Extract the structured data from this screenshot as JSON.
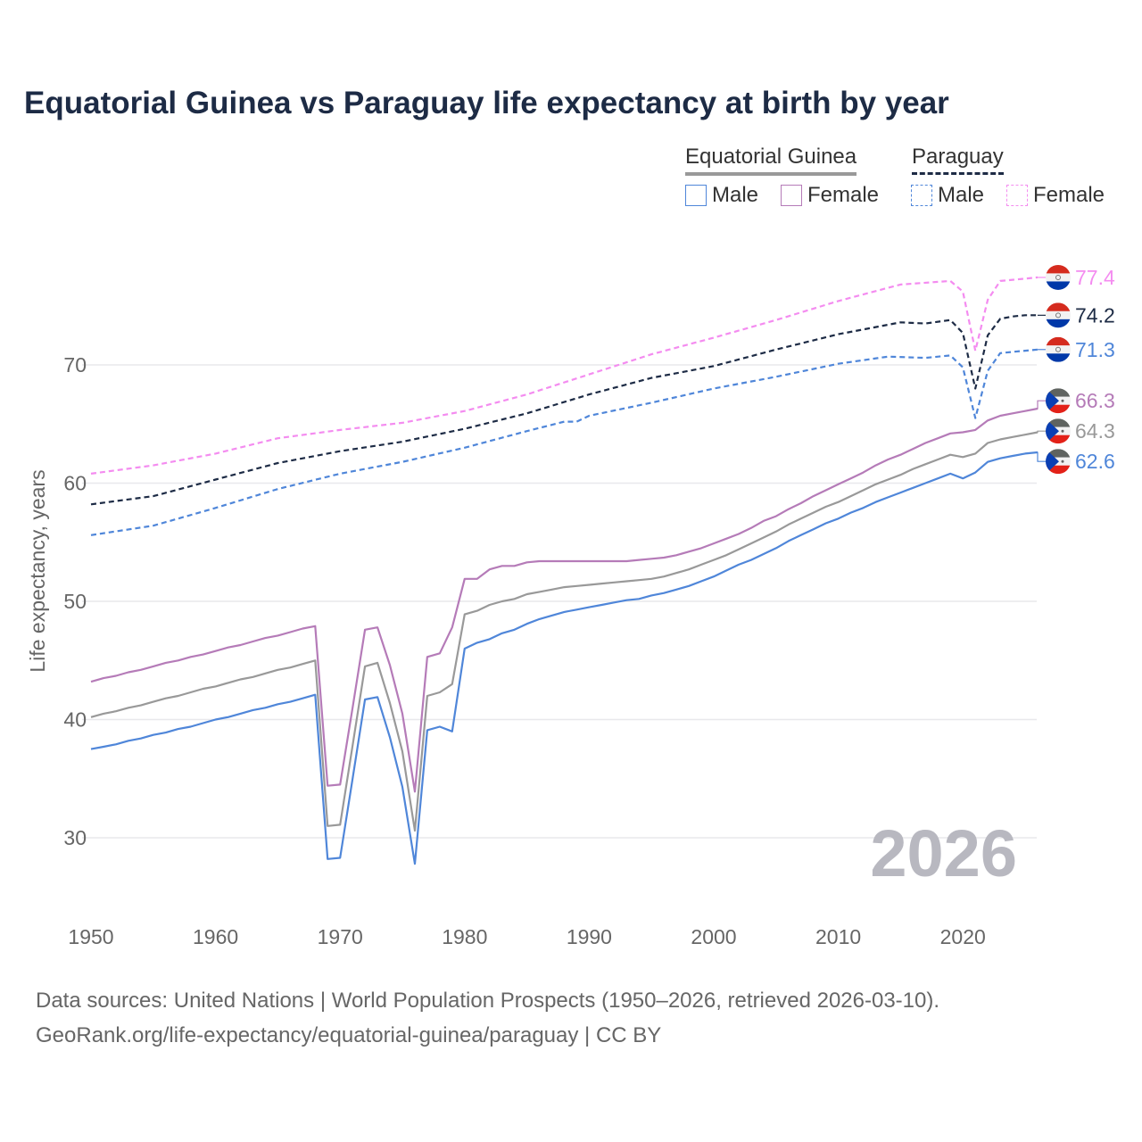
{
  "title": "Equatorial Guinea vs Paraguay life expectancy at birth by year",
  "legend": {
    "groups": [
      {
        "label": "Equatorial Guinea",
        "color": "#999999",
        "style": "solid"
      },
      {
        "label": "Paraguay",
        "color": "#1d2b45",
        "style": "dashed"
      }
    ],
    "items": [
      {
        "label": "Male",
        "color": "#4f86d9",
        "style": "solid"
      },
      {
        "label": "Female",
        "color": "#b57bb8",
        "style": "solid"
      },
      {
        "label": "Male",
        "color": "#4f86d9",
        "style": "dashed"
      },
      {
        "label": "Female",
        "color": "#f48cf0",
        "style": "dashed"
      }
    ]
  },
  "year_watermark": "2026",
  "footer": {
    "line1": "Data sources: United Nations | World Population Prospects (1950–2026, retrieved 2026-03-10).",
    "line2": "GeoRank.org/life-expectancy/equatorial-guinea/paraguay | CC BY"
  },
  "chart_data": {
    "type": "line",
    "title": "Equatorial Guinea vs Paraguay life expectancy at birth by year",
    "xlabel": "",
    "ylabel": "Life expectancy, years",
    "xlim": [
      1950,
      2026
    ],
    "ylim": [
      25,
      80
    ],
    "xticks": [
      "1950",
      "1960",
      "1970",
      "1980",
      "1990",
      "2000",
      "2010",
      "2020"
    ],
    "yticks": [
      "30",
      "40",
      "50",
      "60",
      "70"
    ],
    "grid": true,
    "series": [
      {
        "name": "Paraguay Female",
        "country": "Paraguay",
        "color": "#f48cf0",
        "dashed": true,
        "end_label": "77.4",
        "x": [
          1950,
          1955,
          1960,
          1965,
          1970,
          1975,
          1980,
          1985,
          1990,
          1995,
          2000,
          2005,
          2010,
          2015,
          2019,
          2020,
          2021,
          2022,
          2023,
          2024,
          2025,
          2026
        ],
        "y": [
          60.8,
          61.5,
          62.5,
          63.8,
          64.5,
          65.1,
          66.1,
          67.5,
          69.2,
          70.9,
          72.3,
          73.8,
          75.4,
          76.8,
          77.1,
          76.2,
          71.2,
          75.5,
          77.1,
          77.2,
          77.3,
          77.4
        ]
      },
      {
        "name": "Paraguay",
        "country": "Paraguay",
        "color": "#1d2b45",
        "dashed": true,
        "end_label": "74.2",
        "x": [
          1950,
          1955,
          1960,
          1965,
          1970,
          1975,
          1980,
          1985,
          1990,
          1995,
          2000,
          2005,
          2010,
          2015,
          2017,
          2019,
          2020,
          2021,
          2022,
          2023,
          2024,
          2025,
          2026
        ],
        "y": [
          58.2,
          58.9,
          60.3,
          61.7,
          62.7,
          63.5,
          64.6,
          65.9,
          67.5,
          68.9,
          69.9,
          71.3,
          72.6,
          73.6,
          73.5,
          73.8,
          72.7,
          68.0,
          72.5,
          73.9,
          74.1,
          74.2,
          74.2
        ]
      },
      {
        "name": "Paraguay Male",
        "country": "Paraguay",
        "color": "#4f86d9",
        "dashed": true,
        "end_label": "71.3",
        "x": [
          1950,
          1955,
          1960,
          1965,
          1970,
          1975,
          1980,
          1985,
          1988,
          1989,
          1990,
          1995,
          2000,
          2005,
          2010,
          2014,
          2017,
          2019,
          2020,
          2021,
          2022,
          2023,
          2024,
          2025,
          2026
        ],
        "y": [
          55.6,
          56.4,
          57.9,
          59.5,
          60.8,
          61.8,
          63.0,
          64.4,
          65.2,
          65.2,
          65.7,
          66.8,
          68.0,
          69.0,
          70.1,
          70.7,
          70.6,
          70.8,
          69.8,
          65.5,
          69.5,
          71.0,
          71.1,
          71.2,
          71.3
        ]
      },
      {
        "name": "Equatorial Guinea Female",
        "country": "Equatorial Guinea",
        "color": "#b57bb8",
        "dashed": false,
        "end_label": "66.3",
        "x": [
          1950,
          1951,
          1952,
          1953,
          1954,
          1955,
          1956,
          1957,
          1958,
          1959,
          1960,
          1961,
          1962,
          1963,
          1964,
          1965,
          1966,
          1967,
          1968,
          1969,
          1970,
          1971,
          1972,
          1973,
          1974,
          1975,
          1976,
          1977,
          1978,
          1979,
          1980,
          1981,
          1982,
          1983,
          1984,
          1985,
          1986,
          1987,
          1988,
          1989,
          1990,
          1991,
          1992,
          1993,
          1994,
          1995,
          1996,
          1997,
          1998,
          1999,
          2000,
          2001,
          2002,
          2003,
          2004,
          2005,
          2006,
          2007,
          2008,
          2009,
          2010,
          2011,
          2012,
          2013,
          2014,
          2015,
          2016,
          2017,
          2018,
          2019,
          2020,
          2021,
          2022,
          2023,
          2024,
          2025,
          2026
        ],
        "y": [
          43.2,
          43.5,
          43.7,
          44.0,
          44.2,
          44.5,
          44.8,
          45.0,
          45.3,
          45.5,
          45.8,
          46.1,
          46.3,
          46.6,
          46.9,
          47.1,
          47.4,
          47.7,
          47.9,
          34.4,
          34.5,
          41.0,
          47.6,
          47.8,
          44.6,
          40.5,
          33.9,
          45.3,
          45.6,
          47.8,
          51.9,
          51.9,
          52.7,
          53.0,
          53.0,
          53.3,
          53.4,
          53.4,
          53.4,
          53.4,
          53.4,
          53.4,
          53.4,
          53.4,
          53.5,
          53.6,
          53.7,
          53.9,
          54.2,
          54.5,
          54.9,
          55.3,
          55.7,
          56.2,
          56.8,
          57.2,
          57.8,
          58.3,
          58.9,
          59.4,
          59.9,
          60.4,
          60.9,
          61.5,
          62.0,
          62.4,
          62.9,
          63.4,
          63.8,
          64.2,
          64.3,
          64.5,
          65.3,
          65.7,
          65.9,
          66.1,
          66.3
        ]
      },
      {
        "name": "Equatorial Guinea",
        "country": "Equatorial Guinea",
        "color": "#999999",
        "dashed": false,
        "end_label": "64.3",
        "x": [
          1950,
          1951,
          1952,
          1953,
          1954,
          1955,
          1956,
          1957,
          1958,
          1959,
          1960,
          1961,
          1962,
          1963,
          1964,
          1965,
          1966,
          1967,
          1968,
          1969,
          1970,
          1971,
          1972,
          1973,
          1974,
          1975,
          1976,
          1977,
          1978,
          1979,
          1980,
          1981,
          1982,
          1983,
          1984,
          1985,
          1986,
          1987,
          1988,
          1989,
          1990,
          1991,
          1992,
          1993,
          1994,
          1995,
          1996,
          1997,
          1998,
          1999,
          2000,
          2001,
          2002,
          2003,
          2004,
          2005,
          2006,
          2007,
          2008,
          2009,
          2010,
          2011,
          2012,
          2013,
          2014,
          2015,
          2016,
          2017,
          2018,
          2019,
          2020,
          2021,
          2022,
          2023,
          2024,
          2025,
          2026
        ],
        "y": [
          40.2,
          40.5,
          40.7,
          41.0,
          41.2,
          41.5,
          41.8,
          42.0,
          42.3,
          42.6,
          42.8,
          43.1,
          43.4,
          43.6,
          43.9,
          44.2,
          44.4,
          44.7,
          45.0,
          31.0,
          31.1,
          37.8,
          44.5,
          44.8,
          41.4,
          37.3,
          30.6,
          42.0,
          42.3,
          43.0,
          48.9,
          49.2,
          49.7,
          50.0,
          50.2,
          50.6,
          50.8,
          51.0,
          51.2,
          51.3,
          51.4,
          51.5,
          51.6,
          51.7,
          51.8,
          51.9,
          52.1,
          52.4,
          52.7,
          53.1,
          53.5,
          53.9,
          54.4,
          54.9,
          55.4,
          55.9,
          56.5,
          57.0,
          57.5,
          58.0,
          58.4,
          58.9,
          59.4,
          59.9,
          60.3,
          60.7,
          61.2,
          61.6,
          62.0,
          62.4,
          62.2,
          62.5,
          63.4,
          63.7,
          63.9,
          64.1,
          64.3
        ]
      },
      {
        "name": "Equatorial Guinea Male",
        "country": "Equatorial Guinea",
        "color": "#4f86d9",
        "dashed": false,
        "end_label": "62.6",
        "x": [
          1950,
          1951,
          1952,
          1953,
          1954,
          1955,
          1956,
          1957,
          1958,
          1959,
          1960,
          1961,
          1962,
          1963,
          1964,
          1965,
          1966,
          1967,
          1968,
          1969,
          1970,
          1971,
          1972,
          1973,
          1974,
          1975,
          1976,
          1977,
          1978,
          1979,
          1980,
          1981,
          1982,
          1983,
          1984,
          1985,
          1986,
          1987,
          1988,
          1989,
          1990,
          1991,
          1992,
          1993,
          1994,
          1995,
          1996,
          1997,
          1998,
          1999,
          2000,
          2001,
          2002,
          2003,
          2004,
          2005,
          2006,
          2007,
          2008,
          2009,
          2010,
          2011,
          2012,
          2013,
          2014,
          2015,
          2016,
          2017,
          2018,
          2019,
          2020,
          2021,
          2022,
          2023,
          2024,
          2025,
          2026
        ],
        "y": [
          37.5,
          37.7,
          37.9,
          38.2,
          38.4,
          38.7,
          38.9,
          39.2,
          39.4,
          39.7,
          40.0,
          40.2,
          40.5,
          40.8,
          41.0,
          41.3,
          41.5,
          41.8,
          42.1,
          28.2,
          28.3,
          35.0,
          41.7,
          41.9,
          38.5,
          34.3,
          27.8,
          39.1,
          39.4,
          39.0,
          46.0,
          46.5,
          46.8,
          47.3,
          47.6,
          48.1,
          48.5,
          48.8,
          49.1,
          49.3,
          49.5,
          49.7,
          49.9,
          50.1,
          50.2,
          50.5,
          50.7,
          51.0,
          51.3,
          51.7,
          52.1,
          52.6,
          53.1,
          53.5,
          54.0,
          54.5,
          55.1,
          55.6,
          56.1,
          56.6,
          57.0,
          57.5,
          57.9,
          58.4,
          58.8,
          59.2,
          59.6,
          60.0,
          60.4,
          60.8,
          60.4,
          60.9,
          61.8,
          62.1,
          62.3,
          62.5,
          62.6
        ]
      }
    ]
  }
}
